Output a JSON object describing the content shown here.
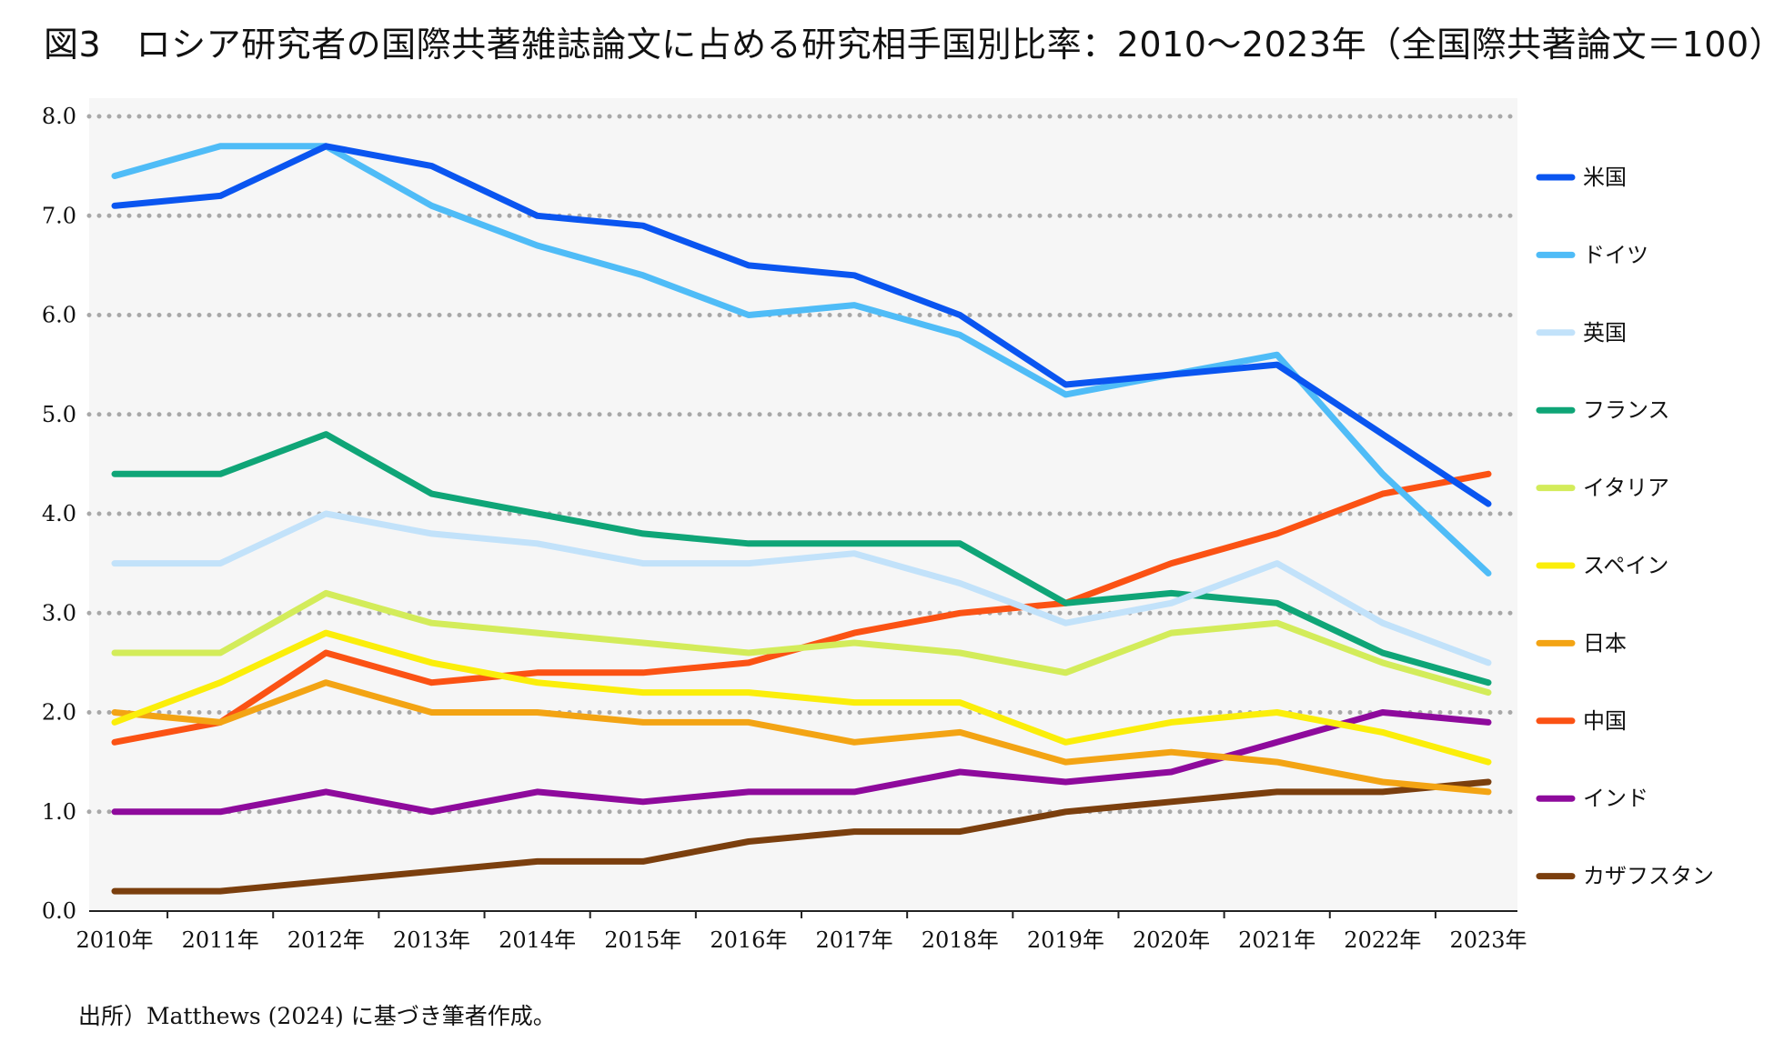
{
  "page": {
    "title": "図3　ロシア研究者の国際共著雑誌論文に占める研究相手国別比率：2010～2023年（全国際共著論文＝100）",
    "source": "出所）Matthews (2024) に基づき筆者作成。"
  },
  "chart_data": {
    "type": "line",
    "title": "図3　ロシア研究者の国際共著雑誌論文に占める研究相手国別比率：2010～2023年（全国際共著論文＝100）",
    "xlabel": "",
    "ylabel": "",
    "ylim": [
      0,
      8
    ],
    "yticks": [
      "0.0",
      "1.0",
      "2.0",
      "3.0",
      "4.0",
      "5.0",
      "6.0",
      "7.0",
      "8.0"
    ],
    "grid": "horizontal dotted",
    "legend_position": "right",
    "categories": [
      "2010年",
      "2011年",
      "2012年",
      "2013年",
      "2014年",
      "2015年",
      "2016年",
      "2017年",
      "2018年",
      "2019年",
      "2020年",
      "2021年",
      "2022年",
      "2023年"
    ],
    "series": [
      {
        "name": "米国",
        "color": "#0a55f0",
        "values": [
          7.1,
          7.2,
          7.7,
          7.5,
          7.0,
          6.9,
          6.5,
          6.4,
          6.0,
          5.3,
          5.4,
          5.5,
          4.8,
          4.1
        ]
      },
      {
        "name": "ドイツ",
        "color": "#4fbcf7",
        "values": [
          7.4,
          7.7,
          7.7,
          7.1,
          6.7,
          6.4,
          6.0,
          6.1,
          5.8,
          5.2,
          5.4,
          5.6,
          4.4,
          3.4
        ]
      },
      {
        "name": "英国",
        "color": "#c2e2fa",
        "values": [
          3.5,
          3.5,
          4.0,
          3.8,
          3.7,
          3.5,
          3.5,
          3.6,
          3.3,
          2.9,
          3.1,
          3.5,
          2.9,
          2.5
        ]
      },
      {
        "name": "フランス",
        "color": "#0fa577",
        "values": [
          4.4,
          4.4,
          4.8,
          4.2,
          4.0,
          3.8,
          3.7,
          3.7,
          3.7,
          3.1,
          3.2,
          3.1,
          2.6,
          2.3
        ]
      },
      {
        "name": "イタリア",
        "color": "#d3ec5a",
        "values": [
          2.6,
          2.6,
          3.2,
          2.9,
          2.8,
          2.7,
          2.6,
          2.7,
          2.6,
          2.4,
          2.8,
          2.9,
          2.5,
          2.2
        ]
      },
      {
        "name": "スペイン",
        "color": "#fbee0a",
        "values": [
          1.9,
          2.3,
          2.8,
          2.5,
          2.3,
          2.2,
          2.2,
          2.1,
          2.1,
          1.7,
          1.9,
          2.0,
          1.8,
          1.5
        ]
      },
      {
        "name": "日本",
        "color": "#f3a414",
        "values": [
          2.0,
          1.9,
          2.3,
          2.0,
          2.0,
          1.9,
          1.9,
          1.7,
          1.8,
          1.5,
          1.6,
          1.5,
          1.3,
          1.2
        ]
      },
      {
        "name": "中国",
        "color": "#fb5214",
        "values": [
          1.7,
          1.9,
          2.6,
          2.3,
          2.4,
          2.4,
          2.5,
          2.8,
          3.0,
          3.1,
          3.5,
          3.8,
          4.2,
          4.4
        ]
      },
      {
        "name": "インド",
        "color": "#8e0a9c",
        "values": [
          1.0,
          1.0,
          1.2,
          1.0,
          1.2,
          1.1,
          1.2,
          1.2,
          1.4,
          1.3,
          1.4,
          1.7,
          2.0,
          1.9
        ]
      },
      {
        "name": "カザフスタン",
        "color": "#7b3f0e",
        "values": [
          0.2,
          0.2,
          0.3,
          0.4,
          0.5,
          0.5,
          0.7,
          0.8,
          0.8,
          1.0,
          1.1,
          1.2,
          1.2,
          1.3
        ]
      }
    ]
  }
}
